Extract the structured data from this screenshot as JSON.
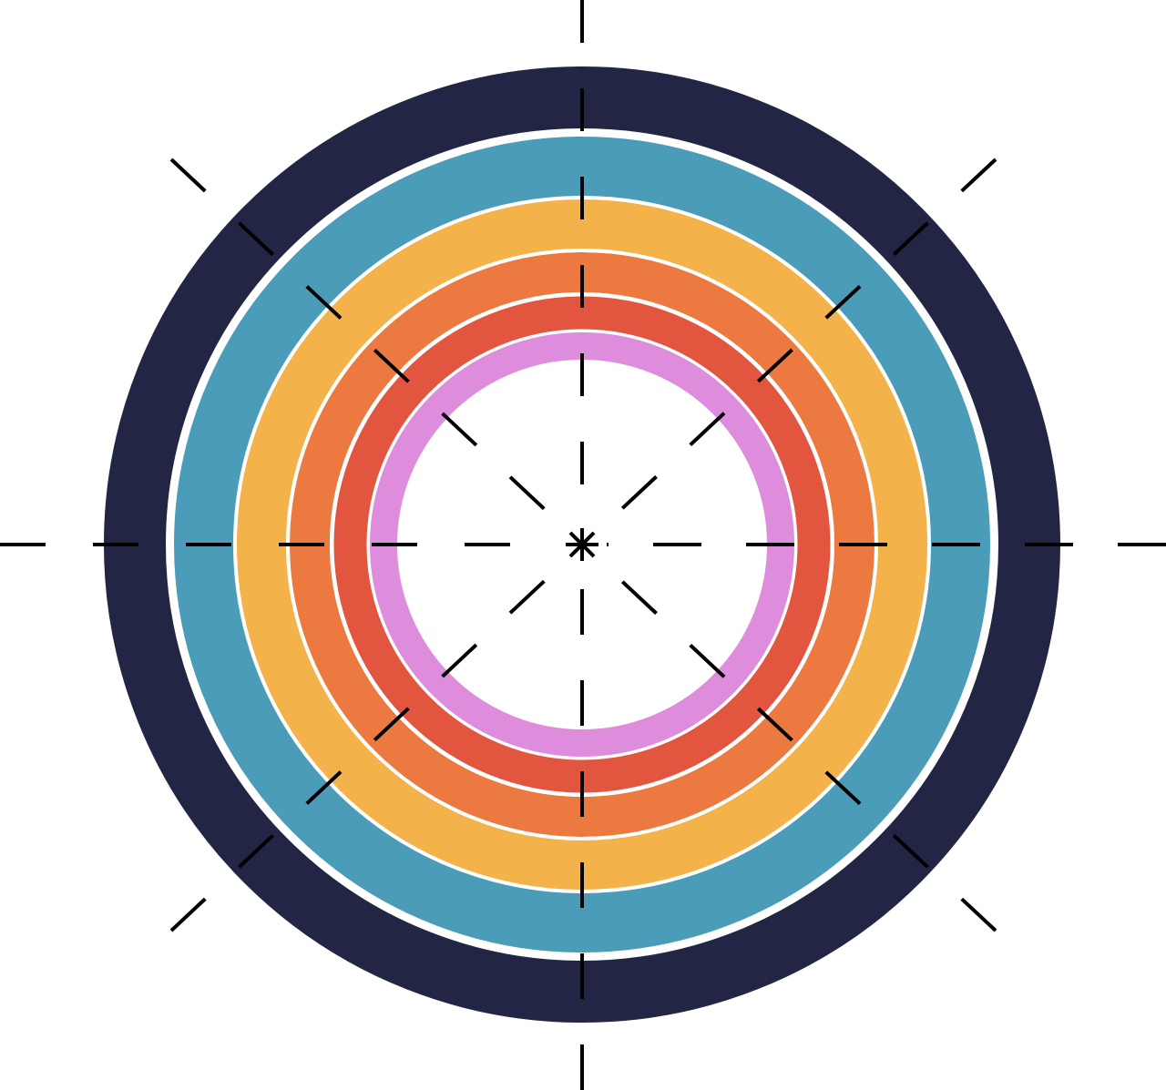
{
  "illustration": {
    "subject": "target-rings",
    "colors": {
      "background": "#ffffff",
      "ring_outer": "#232544",
      "ring_2": "#4a9cb8",
      "ring_3": "#f3b24a",
      "ring_4": "#ec7a40",
      "ring_5": "#e2553f",
      "ring_inner": "#de8cdc",
      "crosshair": "#000000"
    }
  }
}
